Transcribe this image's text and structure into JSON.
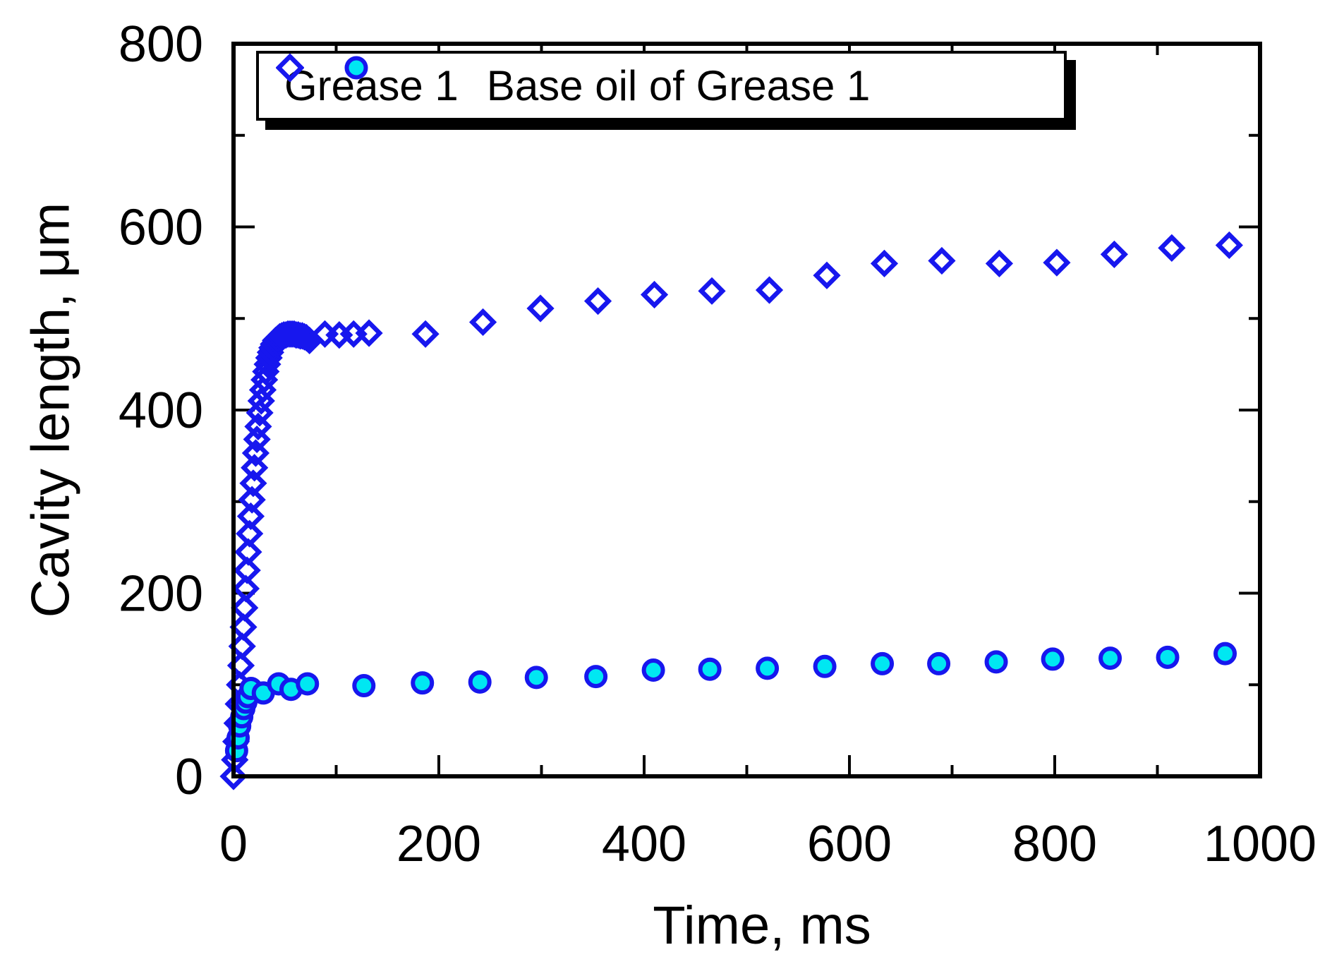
{
  "chart_data": {
    "type": "scatter",
    "title": "",
    "xlabel": "Time, ms",
    "ylabel": "Cavity length, μm",
    "xlim": [
      0,
      1000
    ],
    "ylim": [
      0,
      800
    ],
    "x_major_ticks": [
      0,
      200,
      400,
      600,
      800,
      1000
    ],
    "x_minor_ticks": [
      100,
      300,
      500,
      700,
      900
    ],
    "y_major_ticks": [
      0,
      200,
      400,
      600,
      800
    ],
    "y_minor_ticks": [
      100,
      300,
      500,
      700
    ],
    "x_tick_labels": [
      "0",
      "200",
      "400",
      "600",
      "800",
      "1000"
    ],
    "y_tick_labels": [
      "0",
      "200",
      "400",
      "600",
      "800"
    ],
    "grid": false,
    "tick_direction": "in",
    "frame": "box",
    "legend": {
      "position": "top-left-inside",
      "entries": [
        {
          "label": "Grease 1",
          "marker": "open-diamond"
        },
        {
          "label": "Base oil of Grease 1",
          "marker": "filled-circle"
        }
      ]
    },
    "series": [
      {
        "name": "Grease 1",
        "marker": "open-diamond",
        "stroke": "#1717ee",
        "fill": "none",
        "points": [
          [
            0,
            0
          ],
          [
            1.2,
            18
          ],
          [
            2.4,
            38
          ],
          [
            3.6,
            58
          ],
          [
            4.8,
            79
          ],
          [
            6,
            100
          ],
          [
            7.2,
            121
          ],
          [
            8.4,
            142
          ],
          [
            9.6,
            163
          ],
          [
            10.8,
            184
          ],
          [
            12,
            205
          ],
          [
            13.2,
            225
          ],
          [
            14.4,
            245
          ],
          [
            15.6,
            265
          ],
          [
            16.8,
            284
          ],
          [
            18,
            302
          ],
          [
            19.2,
            320
          ],
          [
            20.4,
            337
          ],
          [
            21.6,
            353
          ],
          [
            22.8,
            368
          ],
          [
            24,
            382
          ],
          [
            25.5,
            397
          ],
          [
            27,
            410
          ],
          [
            28.5,
            422
          ],
          [
            30,
            433
          ],
          [
            31.5,
            442
          ],
          [
            33,
            450
          ],
          [
            34.5,
            457
          ],
          [
            36,
            463
          ],
          [
            37.5,
            468
          ],
          [
            39,
            472
          ],
          [
            41,
            476
          ],
          [
            43,
            478
          ],
          [
            45,
            480
          ],
          [
            47,
            481
          ],
          [
            49,
            482
          ],
          [
            51,
            482
          ],
          [
            53,
            483
          ],
          [
            55,
            483
          ],
          [
            57,
            483
          ],
          [
            59,
            483
          ],
          [
            61,
            482
          ],
          [
            63,
            482
          ],
          [
            65,
            481
          ],
          [
            67,
            481
          ],
          [
            69,
            480
          ],
          [
            71,
            479
          ],
          [
            74,
            476
          ],
          [
            89,
            483
          ],
          [
            103,
            482
          ],
          [
            117,
            483
          ],
          [
            132,
            484
          ],
          [
            187,
            483
          ],
          [
            243,
            496
          ],
          [
            299,
            511
          ],
          [
            355,
            519
          ],
          [
            410,
            526
          ],
          [
            466,
            530
          ],
          [
            522,
            531
          ],
          [
            578,
            547
          ],
          [
            634,
            560
          ],
          [
            690,
            563
          ],
          [
            746,
            560
          ],
          [
            802,
            561
          ],
          [
            858,
            570
          ],
          [
            914,
            577
          ],
          [
            970,
            580
          ]
        ]
      },
      {
        "name": "Base oil of Grease 1",
        "marker": "filled-circle",
        "stroke": "#1717ee",
        "fill": "#00e7f2",
        "points": [
          [
            3,
            28
          ],
          [
            4.5,
            42
          ],
          [
            6,
            55
          ],
          [
            8,
            65
          ],
          [
            10,
            74
          ],
          [
            12,
            81
          ],
          [
            14,
            87
          ],
          [
            17,
            96
          ],
          [
            29,
            91
          ],
          [
            44,
            101
          ],
          [
            56,
            95
          ],
          [
            72,
            101
          ],
          [
            127,
            99
          ],
          [
            184,
            102
          ],
          [
            240,
            103
          ],
          [
            295,
            108
          ],
          [
            353,
            109
          ],
          [
            409,
            116
          ],
          [
            464,
            117
          ],
          [
            520,
            118
          ],
          [
            576,
            120
          ],
          [
            632,
            123
          ],
          [
            687,
            123
          ],
          [
            743,
            125
          ],
          [
            798,
            128
          ],
          [
            854,
            129
          ],
          [
            910,
            130
          ],
          [
            966,
            134
          ]
        ]
      }
    ]
  },
  "colors": {
    "background": "#ffffff",
    "axis": "#000000",
    "text": "#000000",
    "series_blue": "#1717ee",
    "series_cyan_fill": "#00e7f2",
    "legend_border": "#000000",
    "legend_shadow": "#000000"
  }
}
